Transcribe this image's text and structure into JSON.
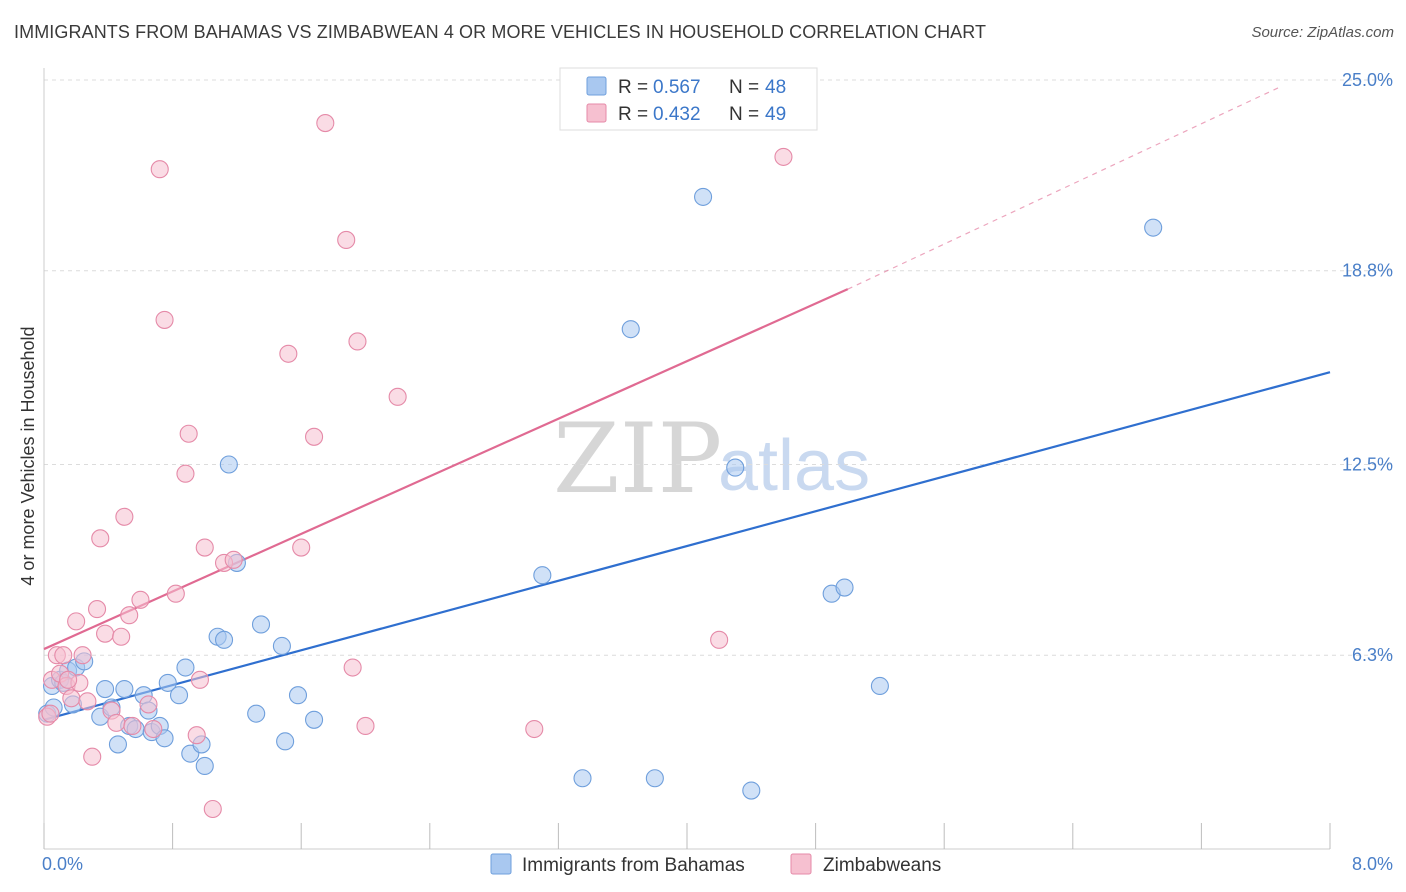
{
  "header": {
    "title": "IMMIGRANTS FROM BAHAMAS VS ZIMBABWEAN 4 OR MORE VEHICLES IN HOUSEHOLD CORRELATION CHART",
    "source": "Source: ZipAtlas.com"
  },
  "watermark": {
    "zip": "ZIP",
    "atlas": "atlas"
  },
  "legend": {
    "rows": [
      {
        "r_label": "R =",
        "r_value": "0.567",
        "n_label": "N =",
        "n_value": "48",
        "color": "#a9c8f0",
        "border": "#6f9fdc"
      },
      {
        "r_label": "R =",
        "r_value": "0.432",
        "n_label": "N =",
        "n_value": "49",
        "color": "#f6c0d0",
        "border": "#e58aa8"
      }
    ]
  },
  "bottom_legend": [
    {
      "label": "Immigrants from Bahamas",
      "color": "#a9c8f0",
      "border": "#6f9fdc"
    },
    {
      "label": "Zimbabweans",
      "color": "#f6c0d0",
      "border": "#e58aa8"
    }
  ],
  "chart_data": {
    "type": "scatter",
    "title": "IMMIGRANTS FROM BAHAMAS VS ZIMBABWEAN 4 OR MORE VEHICLES IN HOUSEHOLD CORRELATION CHART",
    "xlabel": "",
    "ylabel": "4 or more Vehicles in Household",
    "xlim": [
      0,
      8.0
    ],
    "ylim": [
      0,
      25.0
    ],
    "x_tick_labels": [
      "0.0%",
      "8.0%"
    ],
    "y_ticks": [
      6.3,
      12.5,
      18.8,
      25.0
    ],
    "y_tick_labels": [
      "6.3%",
      "12.5%",
      "18.8%",
      "25.0%"
    ],
    "grid": true,
    "legend_position": "top-center",
    "series": [
      {
        "name": "Immigrants from Bahamas",
        "color": "#6f9fdc",
        "fill": "#a9c8f0",
        "r": 0.567,
        "n": 48,
        "trend": {
          "x": [
            0.0,
            8.0
          ],
          "y": [
            4.2,
            15.5
          ],
          "color": "#2f6fcf"
        },
        "points": [
          [
            0.02,
            4.4
          ],
          [
            0.05,
            5.3
          ],
          [
            0.1,
            5.5
          ],
          [
            0.12,
            5.4
          ],
          [
            0.15,
            5.8
          ],
          [
            0.18,
            4.7
          ],
          [
            0.2,
            5.9
          ],
          [
            0.25,
            6.1
          ],
          [
            0.35,
            4.3
          ],
          [
            0.38,
            5.2
          ],
          [
            0.42,
            4.6
          ],
          [
            0.46,
            3.4
          ],
          [
            0.5,
            5.2
          ],
          [
            0.53,
            4.0
          ],
          [
            0.57,
            3.9
          ],
          [
            0.62,
            5.0
          ],
          [
            0.65,
            4.5
          ],
          [
            0.67,
            3.8
          ],
          [
            0.72,
            4.0
          ],
          [
            0.75,
            3.6
          ],
          [
            0.77,
            5.4
          ],
          [
            0.84,
            5.0
          ],
          [
            0.88,
            5.9
          ],
          [
            0.91,
            3.1
          ],
          [
            0.98,
            3.4
          ],
          [
            1.0,
            2.7
          ],
          [
            1.08,
            6.9
          ],
          [
            1.12,
            6.8
          ],
          [
            1.15,
            12.5
          ],
          [
            1.2,
            9.3
          ],
          [
            1.32,
            4.4
          ],
          [
            1.35,
            7.3
          ],
          [
            1.48,
            6.6
          ],
          [
            1.5,
            3.5
          ],
          [
            1.58,
            5.0
          ],
          [
            1.68,
            4.2
          ],
          [
            3.1,
            8.9
          ],
          [
            3.35,
            2.3
          ],
          [
            3.65,
            16.9
          ],
          [
            3.8,
            2.3
          ],
          [
            4.1,
            21.2
          ],
          [
            4.3,
            12.4
          ],
          [
            4.4,
            1.9
          ],
          [
            4.9,
            8.3
          ],
          [
            4.98,
            8.5
          ],
          [
            5.2,
            5.3
          ],
          [
            6.9,
            20.2
          ],
          [
            0.06,
            4.6
          ]
        ]
      },
      {
        "name": "Zimbabweans",
        "color": "#e58aa8",
        "fill": "#f6c0d0",
        "r": 0.432,
        "n": 49,
        "trend": {
          "x": [
            0.0,
            5.0
          ],
          "y": [
            6.5,
            18.2
          ],
          "color": "#e06a92"
        },
        "trend_dashed": {
          "x": [
            5.0,
            7.7
          ],
          "y": [
            18.2,
            24.8
          ]
        },
        "points": [
          [
            0.02,
            4.3
          ],
          [
            0.05,
            5.5
          ],
          [
            0.08,
            6.3
          ],
          [
            0.1,
            5.7
          ],
          [
            0.12,
            6.3
          ],
          [
            0.14,
            5.3
          ],
          [
            0.17,
            4.9
          ],
          [
            0.2,
            7.4
          ],
          [
            0.22,
            5.4
          ],
          [
            0.24,
            6.3
          ],
          [
            0.27,
            4.8
          ],
          [
            0.3,
            3.0
          ],
          [
            0.33,
            7.8
          ],
          [
            0.35,
            10.1
          ],
          [
            0.38,
            7.0
          ],
          [
            0.42,
            4.5
          ],
          [
            0.45,
            4.1
          ],
          [
            0.48,
            6.9
          ],
          [
            0.5,
            10.8
          ],
          [
            0.53,
            7.6
          ],
          [
            0.6,
            8.1
          ],
          [
            0.65,
            4.7
          ],
          [
            0.68,
            3.9
          ],
          [
            0.72,
            22.1
          ],
          [
            0.75,
            17.2
          ],
          [
            0.82,
            8.3
          ],
          [
            0.88,
            12.2
          ],
          [
            0.9,
            13.5
          ],
          [
            0.95,
            3.7
          ],
          [
            0.97,
            5.5
          ],
          [
            1.0,
            9.8
          ],
          [
            1.05,
            1.3
          ],
          [
            1.12,
            9.3
          ],
          [
            1.18,
            9.4
          ],
          [
            1.52,
            16.1
          ],
          [
            1.6,
            9.8
          ],
          [
            1.68,
            13.4
          ],
          [
            1.75,
            23.6
          ],
          [
            1.88,
            19.8
          ],
          [
            1.92,
            5.9
          ],
          [
            1.95,
            16.5
          ],
          [
            2.0,
            4.0
          ],
          [
            2.2,
            14.7
          ],
          [
            3.05,
            3.9
          ],
          [
            4.2,
            6.8
          ],
          [
            4.6,
            22.5
          ],
          [
            0.04,
            4.4
          ],
          [
            0.15,
            5.5
          ],
          [
            0.55,
            4.0
          ]
        ]
      }
    ]
  }
}
